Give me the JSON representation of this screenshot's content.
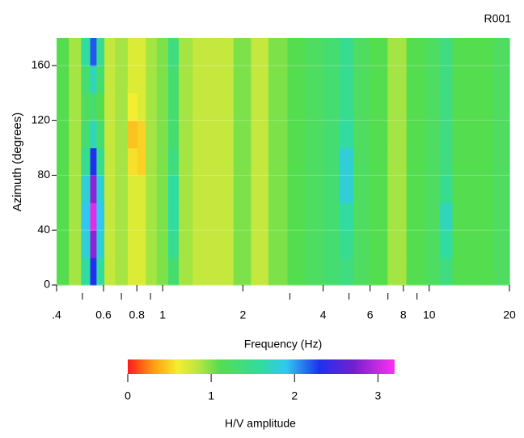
{
  "chart_data": {
    "type": "heatmap",
    "title": "R001",
    "xlabel": "Frequency (Hz)",
    "ylabel": "Azimuth (degrees)",
    "xscale": "log",
    "xlim": [
      0.4,
      20
    ],
    "ylim": [
      0,
      180
    ],
    "xticks": [
      {
        "value": 0.4,
        "label": ".4"
      },
      0.6,
      0.8,
      1,
      2,
      4,
      6,
      8,
      10,
      20
    ],
    "xminorticks": [
      0.5,
      0.7,
      0.9,
      3,
      5,
      7,
      9
    ],
    "yticks": [
      0,
      40,
      80,
      120,
      160
    ],
    "grid": true,
    "x": [
      0.42,
      0.47,
      0.52,
      0.55,
      0.58,
      0.63,
      0.7,
      0.78,
      0.83,
      0.9,
      1.0,
      1.1,
      1.2,
      1.4,
      1.7,
      2.0,
      2.3,
      2.7,
      3.2,
      3.7,
      4.3,
      4.9,
      5.5,
      6.5,
      7.5,
      9,
      10.5,
      11.5,
      13,
      16,
      19
    ],
    "y": [
      10,
      30,
      50,
      70,
      90,
      110,
      130,
      150,
      170
    ],
    "z": [
      [
        1.1,
        0.9,
        1.6,
        2.3,
        1.6,
        0.8,
        0.9,
        0.7,
        0.7,
        0.9,
        1.0,
        1.3,
        0.9,
        0.8,
        0.8,
        1.0,
        0.8,
        1.0,
        1.1,
        1.2,
        1.3,
        1.4,
        1.2,
        1.1,
        0.9,
        1.1,
        1.2,
        1.4,
        1.1,
        1.1,
        1.2
      ],
      [
        1.1,
        0.9,
        1.8,
        2.8,
        1.8,
        0.8,
        0.9,
        0.7,
        0.7,
        0.9,
        1.0,
        1.5,
        0.9,
        0.8,
        0.8,
        1.0,
        0.8,
        1.0,
        1.1,
        1.2,
        1.3,
        1.5,
        1.2,
        1.1,
        0.9,
        1.1,
        1.2,
        1.6,
        1.1,
        1.1,
        1.2
      ],
      [
        1.1,
        0.9,
        1.9,
        3.1,
        1.9,
        0.8,
        0.9,
        0.7,
        0.7,
        0.9,
        1.0,
        1.6,
        0.9,
        0.8,
        0.8,
        1.0,
        0.8,
        1.0,
        1.1,
        1.2,
        1.3,
        1.6,
        1.2,
        1.1,
        0.9,
        1.1,
        1.2,
        1.7,
        1.1,
        1.1,
        1.2
      ],
      [
        1.1,
        0.9,
        1.8,
        2.8,
        1.8,
        0.8,
        0.9,
        0.7,
        0.7,
        0.9,
        1.0,
        1.6,
        0.9,
        0.8,
        0.8,
        1.0,
        0.8,
        1.0,
        1.1,
        1.2,
        1.3,
        1.8,
        1.2,
        1.1,
        0.9,
        1.1,
        1.2,
        1.5,
        1.1,
        1.1,
        1.2
      ],
      [
        1.1,
        0.9,
        1.5,
        2.3,
        1.5,
        0.8,
        0.9,
        0.55,
        0.5,
        0.9,
        1.0,
        1.4,
        0.9,
        0.8,
        0.8,
        1.0,
        0.8,
        1.0,
        1.1,
        1.2,
        1.3,
        1.8,
        1.2,
        1.1,
        0.9,
        1.1,
        1.2,
        1.4,
        1.1,
        1.1,
        1.2
      ],
      [
        1.1,
        0.9,
        1.3,
        1.7,
        1.3,
        0.8,
        0.9,
        0.45,
        0.5,
        0.9,
        1.0,
        1.3,
        0.9,
        0.8,
        0.8,
        1.0,
        0.8,
        1.0,
        1.1,
        1.2,
        1.3,
        1.6,
        1.2,
        1.1,
        0.9,
        1.1,
        1.2,
        1.4,
        1.1,
        1.1,
        1.2
      ],
      [
        1.1,
        0.9,
        1.2,
        1.3,
        1.1,
        0.8,
        0.9,
        0.6,
        0.7,
        0.9,
        1.0,
        1.3,
        0.9,
        0.8,
        0.8,
        1.0,
        0.8,
        1.0,
        1.1,
        1.2,
        1.3,
        1.5,
        1.2,
        1.1,
        0.9,
        1.1,
        1.2,
        1.4,
        1.1,
        1.1,
        1.2
      ],
      [
        1.1,
        0.9,
        1.3,
        1.7,
        1.3,
        0.8,
        0.9,
        0.7,
        0.7,
        0.9,
        1.0,
        1.3,
        0.9,
        0.8,
        0.8,
        1.0,
        0.8,
        1.0,
        1.1,
        1.2,
        1.3,
        1.5,
        1.2,
        1.1,
        0.9,
        1.1,
        1.2,
        1.4,
        1.1,
        1.1,
        1.2
      ],
      [
        1.1,
        0.9,
        1.6,
        2.2,
        1.5,
        0.8,
        0.9,
        0.7,
        0.7,
        0.9,
        1.0,
        1.4,
        0.9,
        0.8,
        0.8,
        1.0,
        0.8,
        1.0,
        1.1,
        1.2,
        1.3,
        1.5,
        1.2,
        1.1,
        0.9,
        1.1,
        1.2,
        1.4,
        1.1,
        1.1,
        1.2
      ]
    ],
    "colormap": [
      {
        "value": 0,
        "color": "#ff1a1a"
      },
      {
        "value": 0.3,
        "color": "#ff9a10"
      },
      {
        "value": 0.6,
        "color": "#f4ee30"
      },
      {
        "value": 0.85,
        "color": "#b8e640"
      },
      {
        "value": 1.1,
        "color": "#55dd50"
      },
      {
        "value": 1.6,
        "color": "#30dca0"
      },
      {
        "value": 1.9,
        "color": "#30c8f0"
      },
      {
        "value": 2.3,
        "color": "#2030ee"
      },
      {
        "value": 2.7,
        "color": "#7020d0"
      },
      {
        "value": 3.2,
        "color": "#ff30ee"
      }
    ],
    "colorbar": {
      "label": "H/V amplitude",
      "lim": [
        0,
        3.2
      ],
      "ticks": [
        0,
        1,
        2,
        3
      ]
    }
  }
}
